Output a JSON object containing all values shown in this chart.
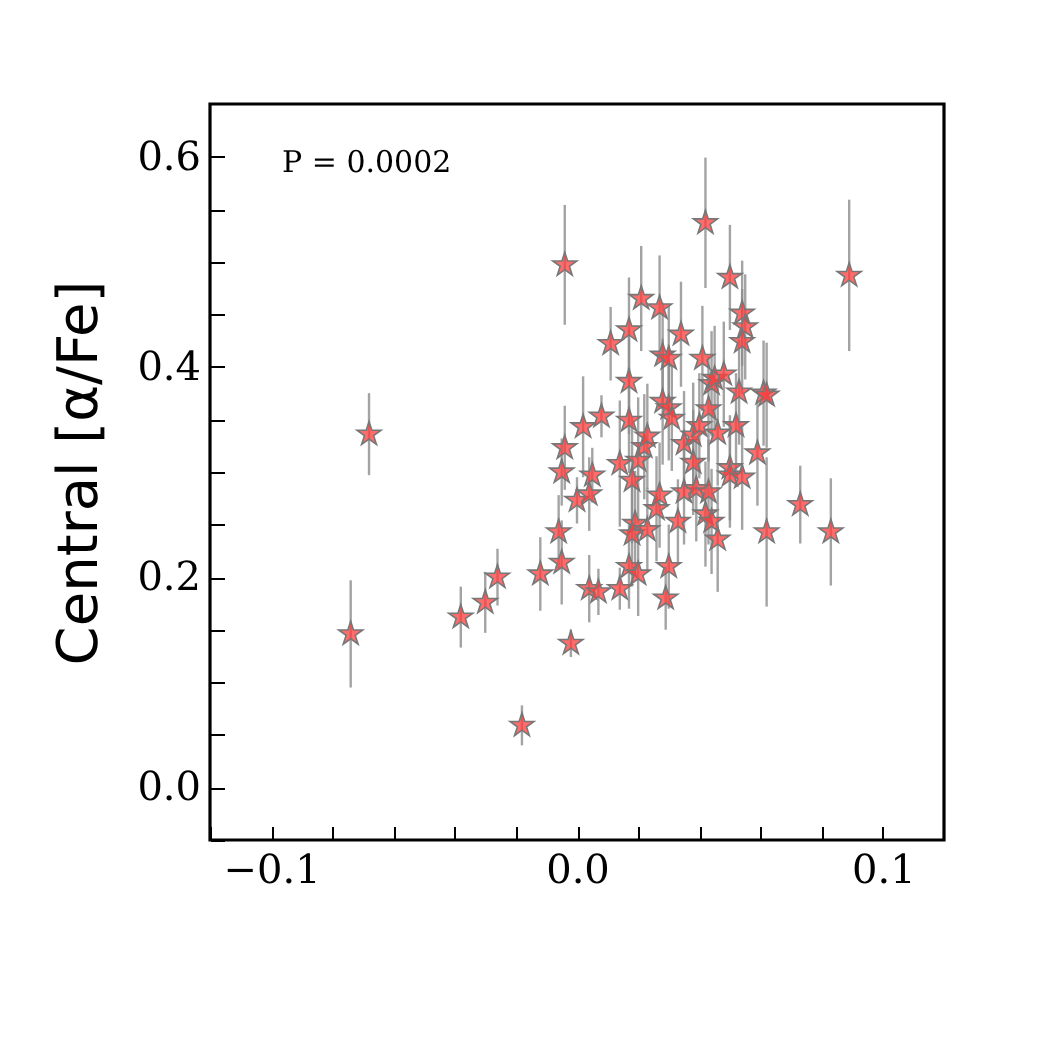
{
  "chart_data": {
    "type": "scatter",
    "ylabel": "Central [α/Fe]",
    "annotations": [
      "P = 0.0002"
    ],
    "xlim": [
      -0.12,
      0.12
    ],
    "ylim": [
      -0.05,
      0.65
    ],
    "xticks": [
      {
        "value": -0.12,
        "label": null
      },
      {
        "value": -0.1,
        "label": "−0.1"
      },
      {
        "value": -0.08,
        "label": null
      },
      {
        "value": -0.06,
        "label": null
      },
      {
        "value": -0.04,
        "label": null
      },
      {
        "value": -0.02,
        "label": null
      },
      {
        "value": 0,
        "label": "0.0"
      },
      {
        "value": 0.02,
        "label": null
      },
      {
        "value": 0.04,
        "label": null
      },
      {
        "value": 0.06,
        "label": null
      },
      {
        "value": 0.08,
        "label": null
      },
      {
        "value": 0.1,
        "label": "0.1"
      }
    ],
    "yticks": [
      {
        "value": -0.05,
        "label": null
      },
      {
        "value": 0,
        "label": "0.0"
      },
      {
        "value": 0.05,
        "label": null
      },
      {
        "value": 0.1,
        "label": null
      },
      {
        "value": 0.15,
        "label": null
      },
      {
        "value": 0.2,
        "label": "0.2"
      },
      {
        "value": 0.25,
        "label": null
      },
      {
        "value": 0.3,
        "label": null
      },
      {
        "value": 0.35,
        "label": null
      },
      {
        "value": 0.4,
        "label": "0.4"
      },
      {
        "value": 0.45,
        "label": null
      },
      {
        "value": 0.5,
        "label": null
      },
      {
        "value": 0.55,
        "label": null
      },
      {
        "value": 0.6,
        "label": "0.6"
      }
    ],
    "marker": "star",
    "grid": false,
    "series": [
      {
        "color": "#ff3b3b",
        "x": [
          -0.074,
          -0.068,
          -0.038,
          -0.03,
          -0.026,
          -0.018,
          -0.012,
          -0.006,
          -0.005,
          -0.005,
          -0.004,
          -0.004,
          -0.002,
          0.0,
          0.002,
          0.004,
          0.005,
          0.004,
          0.007,
          0.008,
          0.011,
          0.014,
          0.014,
          0.017,
          0.017,
          0.017,
          0.017,
          0.018,
          0.019,
          0.018,
          0.02,
          0.02,
          0.021,
          0.022,
          0.023,
          0.023,
          0.026,
          0.027,
          0.027,
          0.028,
          0.028,
          0.029,
          0.03,
          0.03,
          0.03,
          0.031,
          0.033,
          0.034,
          0.035,
          0.035,
          0.038,
          0.038,
          0.039,
          0.04,
          0.041,
          0.042,
          0.042,
          0.043,
          0.043,
          0.044,
          0.044,
          0.045,
          0.046,
          0.046,
          0.048,
          0.05,
          0.05,
          0.05,
          0.052,
          0.053,
          0.054,
          0.054,
          0.055,
          0.054,
          0.059,
          0.061,
          0.062,
          0.062,
          0.073,
          0.083,
          0.089
        ],
        "values": [
          0.146,
          0.336,
          0.162,
          0.176,
          0.2,
          0.059,
          0.203,
          0.243,
          0.214,
          0.3,
          0.497,
          0.323,
          0.137,
          0.273,
          0.343,
          0.279,
          0.297,
          0.189,
          0.186,
          0.353,
          0.422,
          0.189,
          0.308,
          0.435,
          0.386,
          0.349,
          0.21,
          0.292,
          0.251,
          0.241,
          0.203,
          0.311,
          0.465,
          0.324,
          0.334,
          0.245,
          0.265,
          0.278,
          0.456,
          0.367,
          0.411,
          0.18,
          0.21,
          0.408,
          0.361,
          0.351,
          0.253,
          0.431,
          0.281,
          0.327,
          0.335,
          0.309,
          0.284,
          0.344,
          0.408,
          0.537,
          0.26,
          0.281,
          0.36,
          0.253,
          0.384,
          0.389,
          0.236,
          0.337,
          0.393,
          0.485,
          0.304,
          0.297,
          0.344,
          0.376,
          0.295,
          0.451,
          0.438,
          0.424,
          0.318,
          0.375,
          0.373,
          0.243,
          0.269,
          0.243,
          0.487
        ],
        "errors": [
          0.051,
          0.039,
          0.029,
          0.029,
          0.027,
          0.019,
          0.035,
          0.035,
          0.04,
          0.032,
          0.057,
          0.04,
          0.013,
          0.022,
          0.048,
          0.035,
          0.026,
          0.032,
          0.022,
          0.02,
          0.035,
          0.02,
          0.06,
          0.05,
          0.05,
          0.05,
          0.04,
          0.06,
          0.05,
          0.05,
          0.04,
          0.06,
          0.05,
          0.05,
          0.05,
          0.04,
          0.05,
          0.05,
          0.05,
          0.06,
          0.05,
          0.03,
          0.04,
          0.05,
          0.05,
          0.05,
          0.04,
          0.05,
          0.05,
          0.05,
          0.05,
          0.05,
          0.05,
          0.05,
          0.05,
          0.062,
          0.05,
          0.05,
          0.05,
          0.05,
          0.05,
          0.05,
          0.05,
          0.05,
          0.05,
          0.05,
          0.05,
          0.05,
          0.05,
          0.05,
          0.05,
          0.05,
          0.05,
          0.05,
          0.05,
          0.05,
          0.05,
          0.071,
          0.037,
          0.051,
          0.072
        ]
      }
    ]
  }
}
